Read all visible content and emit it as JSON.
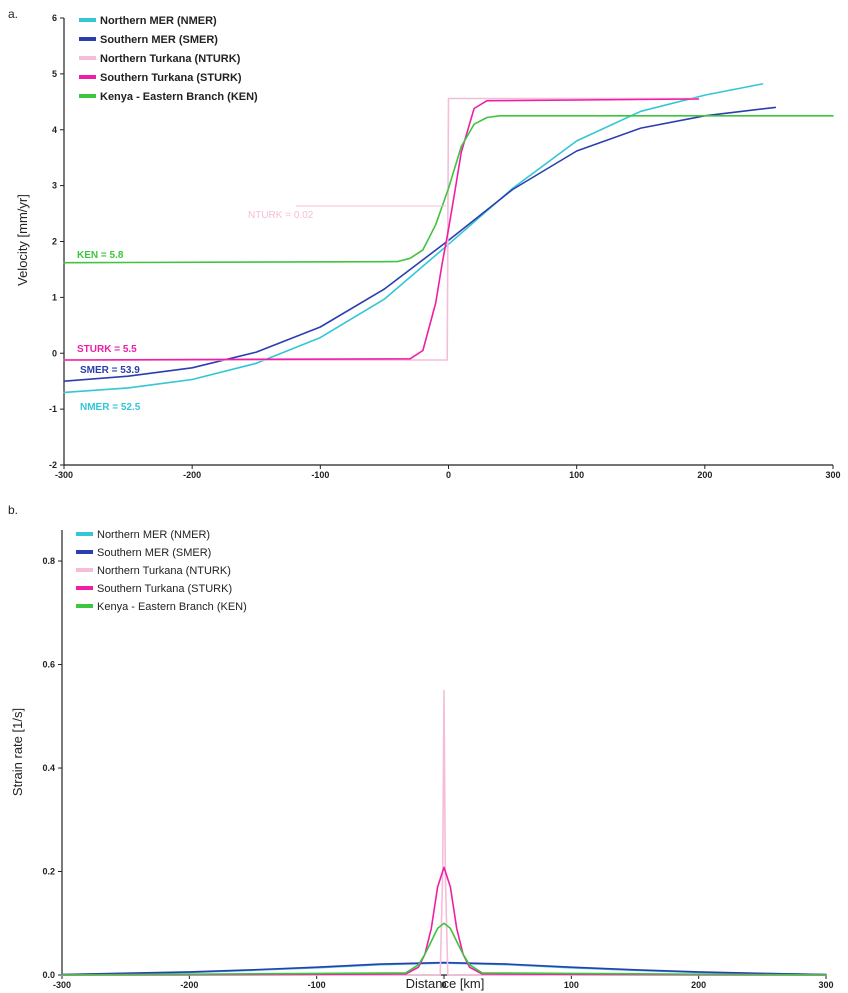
{
  "colors": {
    "NMER": "#33c6d6",
    "SMER": "#2b3eb0",
    "NTURK": "#f5bdd8",
    "STURK": "#ee1fa6",
    "KEN": "#3fc43f"
  },
  "chart_data": [
    {
      "panel": "a.",
      "type": "line",
      "ylabel": "Velocity [mm/yr]",
      "xlim": [
        -300,
        300
      ],
      "ylim": [
        -2,
        6
      ],
      "x_ticks": [
        -300,
        -200,
        -100,
        0,
        100,
        200,
        300
      ],
      "y_ticks": [
        -2,
        -1,
        0,
        1,
        2,
        3,
        4,
        5,
        6
      ],
      "legend": [
        "Northern MER (NMER)",
        "Southern MER (SMER)",
        "Northern Turkana (NTURK)",
        "Southern Turkana (STURK)",
        "Kenya - Eastern Branch (KEN)"
      ],
      "legend_position": "top-left",
      "annotations": [
        {
          "text": "NTURK = 0.02",
          "series": "NTURK"
        },
        {
          "text": "KEN = 5.8",
          "series": "KEN"
        },
        {
          "text": "STURK = 5.5",
          "series": "STURK"
        },
        {
          "text": "SMER = 53.9",
          "series": "SMER"
        },
        {
          "text": "NMER = 52.5",
          "series": "NMER"
        }
      ],
      "series": [
        {
          "name": "Northern MER (NMER)",
          "key": "NMER",
          "x": [
            -300,
            -250,
            -200,
            -150,
            -100,
            -50,
            0,
            50,
            100,
            150,
            200,
            245
          ],
          "y": [
            -0.7,
            -0.62,
            -0.47,
            -0.18,
            0.28,
            0.97,
            1.95,
            2.95,
            3.8,
            4.33,
            4.62,
            4.82
          ]
        },
        {
          "name": "Southern MER (SMER)",
          "key": "SMER",
          "x": [
            -300,
            -250,
            -200,
            -150,
            -100,
            -50,
            0,
            50,
            100,
            150,
            200,
            255
          ],
          "y": [
            -0.5,
            -0.41,
            -0.26,
            0.02,
            0.47,
            1.15,
            2.02,
            2.93,
            3.62,
            4.03,
            4.25,
            4.4
          ]
        },
        {
          "name": "Northern Turkana (NTURK)",
          "key": "NTURK",
          "x": [
            -300,
            -1,
            0,
            195
          ],
          "y": [
            -0.12,
            -0.12,
            4.56,
            4.56
          ]
        },
        {
          "name": "Southern Turkana (STURK)",
          "key": "STURK",
          "x": [
            -300,
            -30,
            -20,
            -10,
            -5,
            0,
            5,
            10,
            20,
            30,
            195
          ],
          "y": [
            -0.12,
            -0.1,
            0.05,
            0.9,
            1.6,
            2.22,
            2.9,
            3.6,
            4.38,
            4.52,
            4.55
          ]
        },
        {
          "name": "Kenya - Eastern Branch (KEN)",
          "key": "KEN",
          "x": [
            -300,
            -40,
            -30,
            -20,
            -10,
            0,
            10,
            20,
            30,
            40,
            300
          ],
          "y": [
            1.62,
            1.64,
            1.7,
            1.85,
            2.3,
            2.95,
            3.7,
            4.1,
            4.22,
            4.25,
            4.25
          ]
        }
      ]
    },
    {
      "panel": "b.",
      "type": "line",
      "xlabel": "Distance [km]",
      "ylabel": "Strain rate [1/s]",
      "xlim": [
        -300,
        300
      ],
      "ylim": [
        0,
        0.86
      ],
      "x_ticks": [
        -300,
        -200,
        -100,
        0,
        100,
        200,
        300
      ],
      "y_ticks": [
        0.0,
        0.2,
        0.4,
        0.6,
        0.8
      ],
      "y_tick_labels": [
        "0.0",
        "0.2",
        "0.4",
        "0.6",
        "0.8"
      ],
      "legend": [
        "Northern MER (NMER)",
        "Southern MER (SMER)",
        "Northern Turkana (NTURK)",
        "Southern Turkana (STURK)",
        "Kenya - Eastern Branch (KEN)"
      ],
      "legend_position": "top-left",
      "series": [
        {
          "name": "Northern MER (NMER)",
          "key": "NMER",
          "x": [
            -300,
            -200,
            -150,
            -100,
            -50,
            0,
            50,
            100,
            150,
            200,
            250,
            300
          ],
          "y": [
            0.001,
            0.005,
            0.009,
            0.014,
            0.02,
            0.023,
            0.02,
            0.014,
            0.009,
            0.005,
            0.003,
            0.001
          ]
        },
        {
          "name": "Southern MER (SMER)",
          "key": "SMER",
          "x": [
            -300,
            -200,
            -150,
            -100,
            -50,
            0,
            50,
            100,
            150,
            200,
            250,
            300
          ],
          "y": [
            0.001,
            0.006,
            0.01,
            0.015,
            0.021,
            0.024,
            0.021,
            0.015,
            0.01,
            0.006,
            0.003,
            0.001
          ]
        },
        {
          "name": "Northern Turkana (NTURK)",
          "key": "NTURK",
          "x": [
            -300,
            -3,
            -1,
            0,
            1,
            3,
            300
          ],
          "y": [
            0,
            0,
            0.2,
            0.55,
            0.2,
            0,
            0
          ]
        },
        {
          "name": "Southern Turkana (STURK)",
          "key": "STURK",
          "x": [
            -300,
            -30,
            -20,
            -15,
            -10,
            -5,
            0,
            5,
            10,
            15,
            20,
            30,
            300
          ],
          "y": [
            0,
            0.002,
            0.015,
            0.04,
            0.09,
            0.17,
            0.208,
            0.17,
            0.09,
            0.04,
            0.015,
            0.002,
            0
          ]
        },
        {
          "name": "Kenya - Eastern Branch (KEN)",
          "key": "KEN",
          "x": [
            -300,
            -30,
            -20,
            -15,
            -10,
            -5,
            0,
            5,
            10,
            15,
            20,
            30,
            300
          ],
          "y": [
            0,
            0.004,
            0.02,
            0.04,
            0.065,
            0.09,
            0.1,
            0.09,
            0.065,
            0.04,
            0.02,
            0.004,
            0
          ]
        }
      ]
    }
  ]
}
